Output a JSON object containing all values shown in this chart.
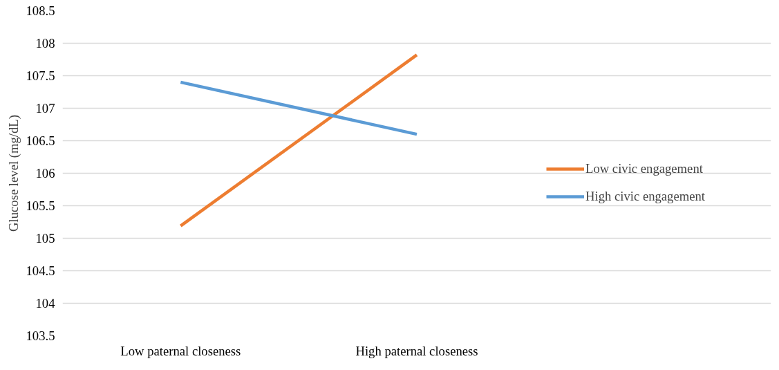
{
  "chart_data": {
    "type": "line",
    "ylabel": "Glucose level (mg/dL)",
    "categories": [
      "Low paternal closeness",
      "High paternal closeness"
    ],
    "series": [
      {
        "name": "Low civic engagement",
        "color": "#ed7d31",
        "values": [
          105.19,
          107.82
        ]
      },
      {
        "name": "High civic engagement",
        "color": "#5b9bd5",
        "values": [
          107.4,
          106.6
        ]
      }
    ],
    "ylim": [
      103.5,
      108.5
    ],
    "yticks": [
      103.5,
      104,
      104.5,
      105,
      105.5,
      106,
      106.5,
      107,
      107.5,
      108,
      108.5
    ],
    "grid": "y",
    "legend": "right",
    "marker": "none",
    "line_style": "solid"
  }
}
